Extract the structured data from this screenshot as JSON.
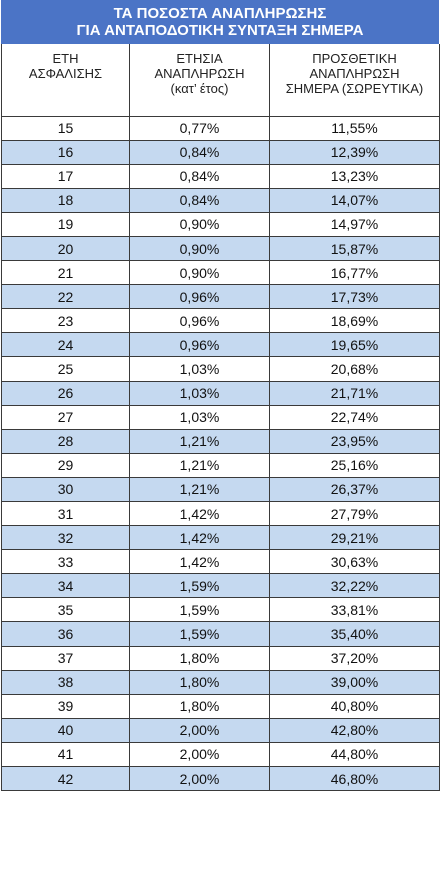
{
  "title": {
    "line1": "ΤΑ ΠΟΣΟΣΤΑ ΑΝΑΠΛΗΡΩΣΗΣ",
    "line2": "ΓΙΑ ΑΝΤΑΠΟΔΟΤΙΚΗ ΣΥΝΤΑΞΗ ΣΗΜΕΡΑ"
  },
  "headers": {
    "col1": [
      "ΕΤΗ",
      "ΑΣΦΑΛΙΣΗΣ"
    ],
    "col2": [
      "ΕΤΗΣΙΑ",
      "ΑΝΑΠΛΗΡΩΣΗ",
      "(κατ’ έτος)"
    ],
    "col3": [
      "ΠΡΟΣΘΕΤΙΚΗ",
      "ΑΝΑΠΛΗΡΩΣΗ",
      "ΣΗΜΕΡΑ (ΣΩΡΕΥΤΙΚΑ)"
    ]
  },
  "rows": [
    [
      "15",
      "0,77%",
      "11,55%"
    ],
    [
      "16",
      "0,84%",
      "12,39%"
    ],
    [
      "17",
      "0,84%",
      "13,23%"
    ],
    [
      "18",
      "0,84%",
      "14,07%"
    ],
    [
      "19",
      "0,90%",
      "14,97%"
    ],
    [
      "20",
      "0,90%",
      "15,87%"
    ],
    [
      "21",
      "0,90%",
      "16,77%"
    ],
    [
      "22",
      "0,96%",
      "17,73%"
    ],
    [
      "23",
      "0,96%",
      "18,69%"
    ],
    [
      "24",
      "0,96%",
      "19,65%"
    ],
    [
      "25",
      "1,03%",
      "20,68%"
    ],
    [
      "26",
      "1,03%",
      "21,71%"
    ],
    [
      "27",
      "1,03%",
      "22,74%"
    ],
    [
      "28",
      "1,21%",
      "23,95%"
    ],
    [
      "29",
      "1,21%",
      "25,16%"
    ],
    [
      "30",
      "1,21%",
      "26,37%"
    ],
    [
      "31",
      "1,42%",
      "27,79%"
    ],
    [
      "32",
      "1,42%",
      "29,21%"
    ],
    [
      "33",
      "1,42%",
      "30,63%"
    ],
    [
      "34",
      "1,59%",
      "32,22%"
    ],
    [
      "35",
      "1,59%",
      "33,81%"
    ],
    [
      "36",
      "1,59%",
      "35,40%"
    ],
    [
      "37",
      "1,80%",
      "37,20%"
    ],
    [
      "38",
      "1,80%",
      "39,00%"
    ],
    [
      "39",
      "1,80%",
      "40,80%"
    ],
    [
      "40",
      "2,00%",
      "42,80%"
    ],
    [
      "41",
      "2,00%",
      "44,80%"
    ],
    [
      "42",
      "2,00%",
      "46,80%"
    ]
  ],
  "colors": {
    "title_bg": "#4b74c6",
    "row_alt_bg": "#c5d9f0",
    "border": "#3a3a3a"
  }
}
